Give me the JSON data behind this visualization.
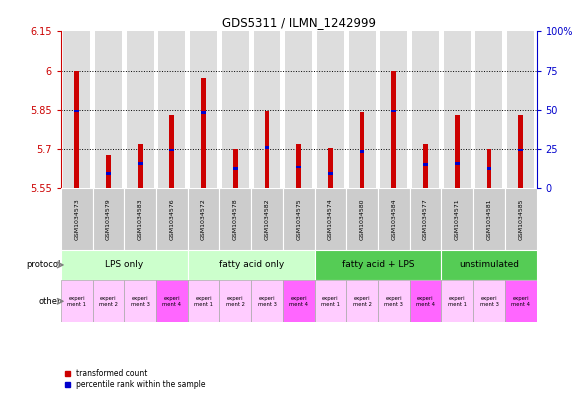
{
  "title": "GDS5311 / ILMN_1242999",
  "samples": [
    "GSM1034573",
    "GSM1034579",
    "GSM1034583",
    "GSM1034576",
    "GSM1034572",
    "GSM1034578",
    "GSM1034582",
    "GSM1034575",
    "GSM1034574",
    "GSM1034580",
    "GSM1034584",
    "GSM1034577",
    "GSM1034571",
    "GSM1034581",
    "GSM1034585"
  ],
  "red_values": [
    6.0,
    5.675,
    5.72,
    5.83,
    5.97,
    5.7,
    5.845,
    5.72,
    5.705,
    5.84,
    6.0,
    5.72,
    5.83,
    5.7,
    5.83
  ],
  "blue_values": [
    5.845,
    5.605,
    5.645,
    5.695,
    5.84,
    5.625,
    5.705,
    5.63,
    5.605,
    5.69,
    5.845,
    5.64,
    5.645,
    5.625,
    5.695
  ],
  "ylim_left": [
    5.55,
    6.15
  ],
  "ylim_right": [
    0,
    100
  ],
  "yticks_left": [
    5.55,
    5.7,
    5.85,
    6.0,
    6.15
  ],
  "yticks_right": [
    0,
    25,
    50,
    75,
    100
  ],
  "ytick_labels_left": [
    "5.55",
    "5.7",
    "5.85",
    "6",
    "6.15"
  ],
  "ytick_labels_right": [
    "0",
    "25",
    "50",
    "75",
    "100%"
  ],
  "gridlines": [
    6.0,
    5.85,
    5.7
  ],
  "protocols": [
    {
      "label": "LPS only",
      "start": 0,
      "end": 4,
      "color": "#ccffcc"
    },
    {
      "label": "fatty acid only",
      "start": 4,
      "end": 8,
      "color": "#ccffcc"
    },
    {
      "label": "fatty acid + LPS",
      "start": 8,
      "end": 12,
      "color": "#55cc55"
    },
    {
      "label": "unstimulated",
      "start": 12,
      "end": 15,
      "color": "#55cc55"
    }
  ],
  "other_labels": [
    "experi\nment 1",
    "experi\nment 2",
    "experi\nment 3",
    "experi\nment 4",
    "experi\nment 1",
    "experi\nment 2",
    "experi\nment 3",
    "experi\nment 4",
    "experi\nment 1",
    "experi\nment 2",
    "experi\nment 3",
    "experi\nment 4",
    "experi\nment 1",
    "experi\nment 3",
    "experi\nment 4"
  ],
  "other_colors": [
    "#ffccff",
    "#ffccff",
    "#ffccff",
    "#ff66ff",
    "#ffccff",
    "#ffccff",
    "#ffccff",
    "#ff66ff",
    "#ffccff",
    "#ffccff",
    "#ffccff",
    "#ff66ff",
    "#ffccff",
    "#ffccff",
    "#ff66ff"
  ],
  "red_color": "#cc0000",
  "blue_color": "#0000cc",
  "bar_bg_color": "#dddddd",
  "sample_bg_color": "#cccccc",
  "left_label_color": "#cc0000",
  "right_label_color": "#0000cc"
}
